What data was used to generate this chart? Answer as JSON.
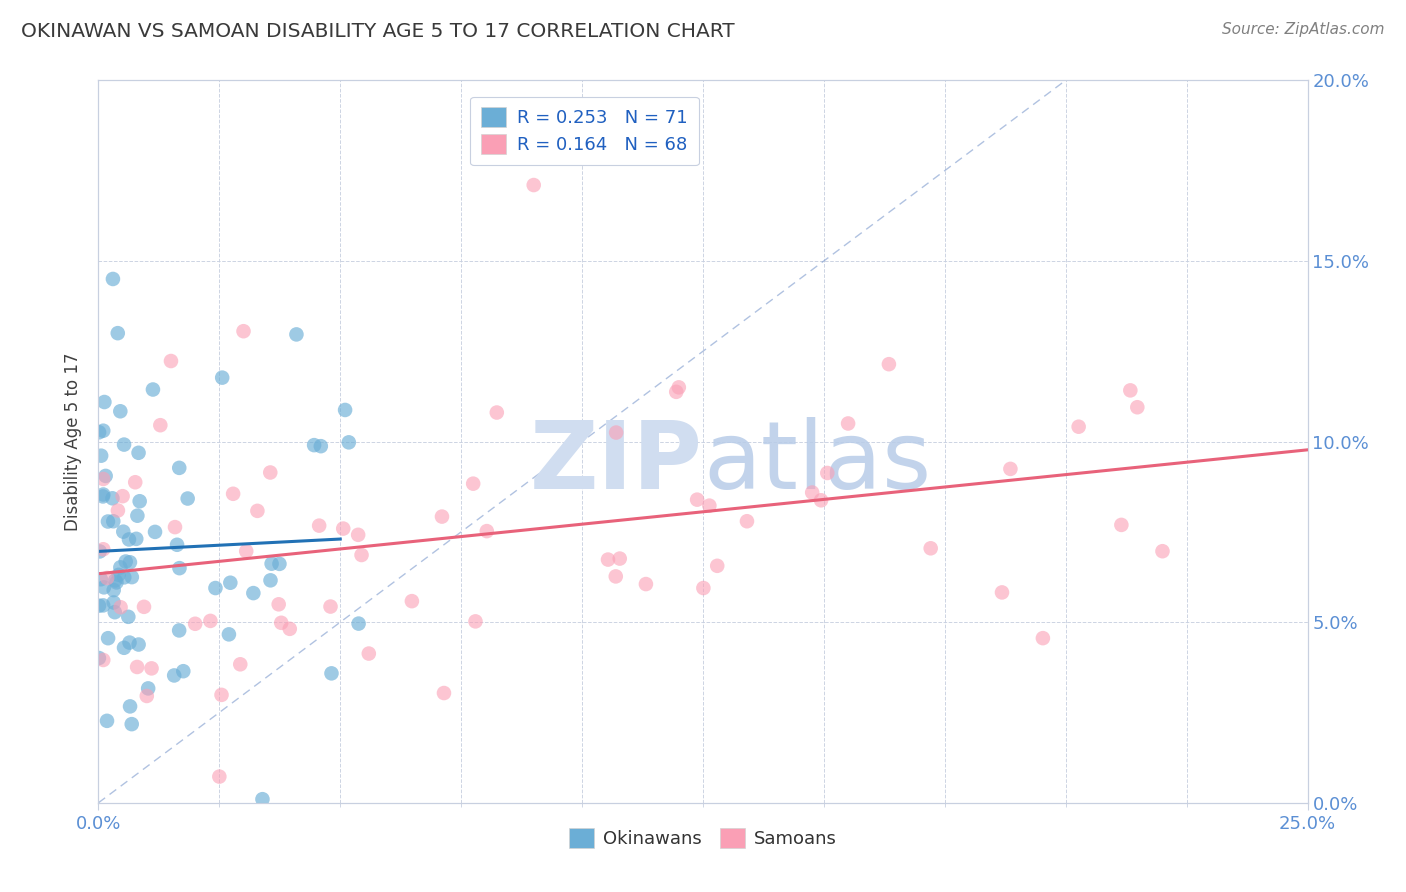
{
  "title": "OKINAWAN VS SAMOAN DISABILITY AGE 5 TO 17 CORRELATION CHART",
  "source": "Source: ZipAtlas.com",
  "ylabel": "Disability Age 5 to 17",
  "xlim": [
    0.0,
    0.25
  ],
  "ylim": [
    0.0,
    0.2
  ],
  "R_okinawan": 0.253,
  "N_okinawan": 71,
  "R_samoan": 0.164,
  "N_samoan": 68,
  "okinawan_color": "#6baed6",
  "samoan_color": "#fa9fb5",
  "trend_okinawan_color": "#2171b5",
  "trend_samoan_color": "#e8627a",
  "diag_color": "#7090c8",
  "title_color": "#3a3a3a",
  "source_color": "#808080",
  "background_color": "#ffffff",
  "grid_color": "#c8d0e0",
  "legend_text_color": "#2060c0",
  "watermark_color": "#d0ddf0",
  "tick_color": "#5b8fd4"
}
